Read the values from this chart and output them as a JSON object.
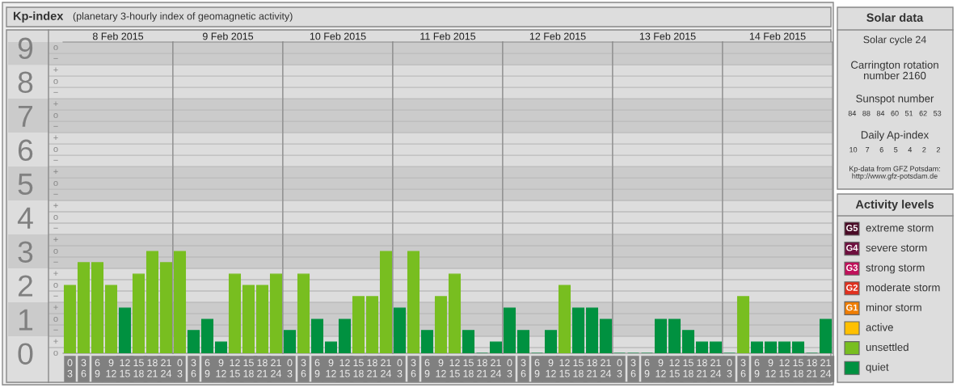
{
  "chart_data": [
    {
      "type": "other",
      "title": "Kp-index",
      "subtitle": "(planetary 3-hourly index of geomagnetic activity)"
    },
    {
      "type": "bar",
      "title": "8 Feb 2015",
      "categories": [
        "0\n3",
        "3\n6",
        "6\n9",
        "9\n12",
        "12\n15",
        "15\n18",
        "18\n21",
        "21\n24"
      ],
      "series": [
        {
          "name": "extreme storm",
          "color": "#4a0b26",
          "values": [
            null,
            null,
            null,
            null,
            null,
            null,
            null,
            null
          ]
        },
        {
          "name": "severe storm",
          "color": "#6e0f3e",
          "values": [
            null,
            null,
            null,
            null,
            null,
            null,
            null,
            null
          ]
        },
        {
          "name": "strong storm",
          "color": "#c0105a",
          "values": [
            null,
            null,
            null,
            null,
            null,
            null,
            null,
            null
          ]
        },
        {
          "name": "moderate storm",
          "color": "#e0301e",
          "values": [
            null,
            null,
            null,
            null,
            null,
            null,
            null,
            null
          ]
        },
        {
          "name": "minor storm",
          "color": "#ef7d00",
          "values": [
            null,
            null,
            null,
            null,
            null,
            null,
            null,
            null
          ]
        },
        {
          "name": "active",
          "color": "#ffc000",
          "values": [
            null,
            null,
            null,
            null,
            null,
            null,
            null,
            null
          ]
        },
        {
          "name": "unsettled",
          "color": "#78be20",
          "values": [
            2,
            2.67,
            2.67,
            2,
            null,
            2.33,
            3,
            2.67
          ]
        },
        {
          "name": "quiet",
          "color": "#009140",
          "values": [
            null,
            null,
            null,
            null,
            1.33,
            null,
            null,
            null
          ]
        }
      ],
      "legend": "right",
      "legend_title": "Activity levels",
      "annotations": [
        "G5",
        "G4",
        "G3",
        "G2",
        "G1",
        "o",
        "+",
        "−",
        "o",
        "+",
        "−",
        "o",
        "+",
        "−",
        "o",
        "+",
        "−",
        "o",
        "+",
        "−",
        "o",
        "+",
        "−",
        "o",
        "+",
        "−",
        "o",
        "+",
        "−",
        "o",
        "+",
        "−",
        "o"
      ],
      "ylim": [
        0,
        9.17
      ],
      "yticks": [
        0,
        1,
        2,
        3,
        4,
        5,
        6,
        7,
        8,
        9
      ],
      "grid": true
    },
    {
      "type": "bar",
      "title": "9 Feb 2015",
      "categories": [
        "0\n3",
        "3\n6",
        "6\n9",
        "9\n12",
        "12\n15",
        "15\n18",
        "18\n21",
        "21\n24"
      ],
      "series": [
        {
          "color": "#78be20",
          "values": [
            3,
            null,
            null,
            null,
            2.33,
            2,
            2,
            2.33
          ]
        },
        {
          "color": "#009140",
          "values": [
            null,
            0.67,
            1,
            0.33,
            null,
            null,
            null,
            null
          ]
        }
      ],
      "ylim": [
        0,
        9.17
      ],
      "yticks": [
        0,
        1,
        2,
        3,
        4,
        5,
        6,
        7,
        8,
        9
      ],
      "tick_labels": "x",
      "grid": true
    },
    {
      "type": "bar",
      "title": "10 Feb 2015",
      "categories": [
        "0\n3",
        "3\n6",
        "6\n9",
        "9\n12",
        "12\n15",
        "15\n18",
        "18\n21",
        "21\n24"
      ],
      "series": [
        {
          "color": "#78be20",
          "values": [
            null,
            2.33,
            null,
            null,
            null,
            1.67,
            1.67,
            3
          ]
        },
        {
          "color": "#009140",
          "values": [
            0.67,
            null,
            1,
            0.33,
            1,
            null,
            null,
            null
          ]
        }
      ],
      "ylim": [
        0,
        9.17
      ],
      "yticks": [
        0,
        1,
        2,
        3,
        4,
        5,
        6,
        7,
        8,
        9
      ],
      "tick_labels": "x",
      "grid": true
    },
    {
      "type": "bar",
      "title": "11 Feb 2015",
      "categories": [
        "0\n3",
        "3\n6",
        "6\n9",
        "9\n12",
        "12\n15",
        "15\n18",
        "18\n21",
        "21\n24"
      ],
      "series": [
        {
          "color": "#78be20",
          "values": [
            null,
            3,
            null,
            1.67,
            2.33,
            null,
            null,
            null
          ]
        },
        {
          "color": "#009140",
          "values": [
            1.33,
            null,
            0.67,
            null,
            null,
            0.67,
            0,
            0.33
          ]
        }
      ],
      "ylim": [
        0,
        9.17
      ],
      "yticks": [
        0,
        1,
        2,
        3,
        4,
        5,
        6,
        7,
        8,
        9
      ],
      "tick_labels": "x",
      "grid": true
    },
    {
      "type": "bar",
      "title": "12 Feb 2015",
      "categories": [
        "0\n3",
        "3\n6",
        "6\n9",
        "9\n12",
        "12\n15",
        "15\n18",
        "18\n21",
        "21\n24"
      ],
      "series": [
        {
          "color": "#78be20",
          "values": [
            null,
            null,
            null,
            null,
            2,
            null,
            null,
            null
          ]
        },
        {
          "color": "#009140",
          "values": [
            1.33,
            0.67,
            0,
            0.67,
            null,
            1.33,
            1.33,
            1
          ]
        }
      ],
      "ylim": [
        0,
        9.17
      ],
      "yticks": [
        0,
        1,
        2,
        3,
        4,
        5,
        6,
        7,
        8,
        9
      ],
      "tick_labels": "x",
      "grid": true
    },
    {
      "type": "bar",
      "title": "13 Feb 2015",
      "categories": [
        "0\n3",
        "3\n6",
        "6\n9",
        "9\n12",
        "12\n15",
        "15\n18",
        "18\n21",
        "21\n24"
      ],
      "series": [
        {
          "color": "#009140",
          "values": [
            0,
            0,
            0,
            1,
            1,
            0.67,
            0.33,
            0.33
          ]
        }
      ],
      "ylim": [
        0,
        9.17
      ],
      "yticks": [
        0,
        1,
        2,
        3,
        4,
        5,
        6,
        7,
        8,
        9
      ],
      "tick_labels": "x",
      "grid": true
    },
    {
      "type": "bar",
      "title": "14 Feb 2015",
      "categories": [
        "0\n3",
        "3\n6",
        "6\n9",
        "9\n12",
        "12\n15",
        "15\n18",
        "18\n21",
        "21\n24"
      ],
      "series": [
        {
          "color": "#78be20",
          "values": [
            null,
            1.67,
            null,
            null,
            null,
            null,
            null,
            null
          ]
        },
        {
          "color": "#009140",
          "values": [
            0,
            null,
            0.33,
            0.33,
            0.33,
            0.33,
            0,
            1
          ]
        }
      ],
      "ylim": [
        0,
        9.17
      ],
      "yticks": [
        0,
        1,
        2,
        3,
        4,
        5,
        6,
        7,
        8,
        9
      ],
      "tick_labels": "x",
      "grid": true
    },
    {
      "type": "other",
      "title": "Solar data",
      "annotations": [
        "Solar cycle 24",
        "Carrington rotation\nnumber 2160",
        "Sunspot number",
        "84   88   84   60   51   62   53",
        "Daily Ap-index",
        "10    7     6     5     4     2     2",
        "Kp-data from GFZ Potsdam:\nhttp://www.gfz-potsdam.de"
      ]
    }
  ]
}
